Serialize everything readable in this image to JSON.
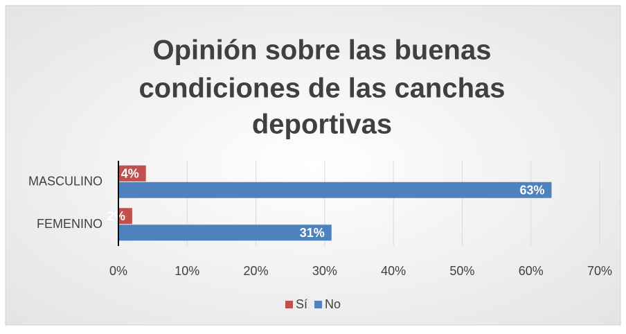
{
  "chart_data": {
    "type": "bar",
    "orientation": "horizontal",
    "title": "Opinión sobre las buenas condiciones de las canchas deportivas",
    "title_lines": [
      "Opinión sobre las buenas",
      "condiciones de las canchas",
      "deportivas"
    ],
    "categories": [
      "MASCULINO",
      "FEMENINO"
    ],
    "series": [
      {
        "name": "Sí",
        "color": "#c0504d",
        "values": [
          4,
          2
        ],
        "value_labels": [
          "4%",
          "2%"
        ]
      },
      {
        "name": "No",
        "color": "#4f81bd",
        "values": [
          63,
          31
        ],
        "value_labels": [
          "63%",
          "31%"
        ]
      }
    ],
    "xlim": [
      0,
      70
    ],
    "xticks": [
      {
        "value": 0,
        "label": "0%"
      },
      {
        "value": 10,
        "label": "10%"
      },
      {
        "value": 20,
        "label": "20%"
      },
      {
        "value": 30,
        "label": "30%"
      },
      {
        "value": 40,
        "label": "40%"
      },
      {
        "value": 50,
        "label": "50%"
      },
      {
        "value": 60,
        "label": "60%"
      },
      {
        "value": 70,
        "label": "70%"
      }
    ],
    "grid": true,
    "legend": "bottom"
  }
}
